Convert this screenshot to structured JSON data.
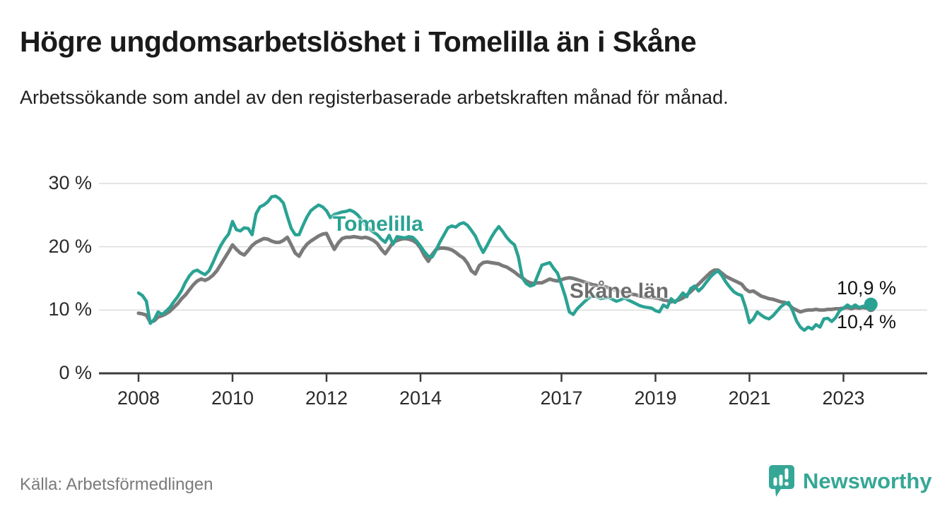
{
  "header": {
    "title": "Högre ungdomsarbetslöshet i Tomelilla än i Skåne",
    "subtitle": "Arbetssökande som andel av den registerbaserade arbetskraften månad för månad."
  },
  "chart_data": {
    "type": "line",
    "title": "Högre ungdomsarbetslöshet i Tomelilla än i Skåne",
    "subtitle": "Arbetssökande som andel av den registerbaserade arbetskraften månad för månad.",
    "unit": "%",
    "frequency": "monthly",
    "x_start": "2008-01",
    "x_end": "2023-08",
    "grid": "horizontal",
    "legend_position": "inline-labels",
    "y_axis": {
      "range": [
        0,
        30
      ],
      "ticks": [
        "30 %",
        "20 %",
        "10 %",
        "0 %"
      ]
    },
    "x_axis": {
      "ticks": [
        "2008",
        "2010",
        "2012",
        "2014",
        "2017",
        "2019",
        "2021",
        "2023"
      ]
    },
    "series": [
      {
        "name": "Skåne län",
        "color": "#7a7a7a",
        "end_label": "10,4 %",
        "end_value": 10.4,
        "values": [
          9.5,
          9.4,
          9.2,
          8.1,
          8.3,
          8.9,
          9.1,
          9.4,
          9.8,
          10.4,
          11.0,
          11.8,
          12.4,
          13.2,
          14.0,
          14.6,
          14.9,
          14.7,
          15.0,
          15.5,
          16.2,
          17.2,
          18.2,
          19.2,
          20.3,
          19.6,
          19.0,
          18.7,
          19.4,
          20.2,
          20.7,
          21.0,
          21.3,
          21.2,
          20.9,
          20.7,
          20.7,
          21.0,
          21.5,
          20.3,
          19.0,
          18.5,
          19.6,
          20.4,
          20.9,
          21.3,
          21.7,
          22.0,
          22.1,
          20.8,
          19.6,
          20.6,
          21.3,
          21.5,
          21.5,
          21.6,
          21.5,
          21.4,
          21.5,
          21.3,
          21.0,
          20.5,
          19.6,
          18.9,
          19.8,
          20.7,
          21.0,
          21.2,
          21.3,
          21.2,
          21.0,
          20.6,
          19.8,
          18.6,
          17.7,
          18.8,
          19.6,
          19.8,
          19.8,
          19.7,
          19.5,
          19.1,
          18.6,
          18.2,
          17.4,
          16.2,
          15.7,
          17.0,
          17.5,
          17.6,
          17.5,
          17.4,
          17.3,
          17.0,
          16.8,
          16.4,
          16.0,
          15.5,
          15.1,
          14.6,
          14.3,
          14.2,
          14.3,
          14.3,
          14.6,
          14.9,
          14.7,
          14.6,
          14.8,
          15.0,
          15.1,
          15.0,
          14.8,
          14.6,
          14.4,
          14.2,
          14.0,
          13.9,
          13.8,
          13.7,
          13.5,
          13.3,
          13.1,
          12.9,
          12.8,
          12.6,
          12.5,
          12.4,
          12.2,
          12.1,
          12.0,
          12.0,
          11.9,
          11.8,
          11.6,
          11.5,
          11.3,
          11.4,
          11.6,
          11.9,
          12.4,
          12.9,
          13.5,
          14.1,
          14.7,
          15.3,
          15.9,
          16.3,
          16.3,
          15.8,
          15.3,
          15.0,
          14.7,
          14.4,
          14.1,
          13.3,
          12.9,
          13.0,
          12.6,
          12.2,
          12.0,
          11.8,
          11.7,
          11.5,
          11.3,
          11.2,
          10.9,
          10.3,
          10.0,
          9.7,
          9.9,
          10.0,
          10.0,
          10.1,
          10.0,
          10.0,
          10.1,
          10.1,
          10.2,
          10.2,
          10.3,
          10.4,
          10.2,
          10.4,
          10.3,
          10.4,
          10.3,
          10.4
        ]
      },
      {
        "name": "Tomelilla",
        "color": "#2aa293",
        "end_label": "10,9 %",
        "end_value": 10.9,
        "values": [
          12.7,
          12.3,
          11.4,
          7.9,
          8.5,
          9.7,
          9.3,
          9.8,
          10.4,
          11.3,
          12.1,
          13.1,
          14.4,
          15.4,
          16.1,
          16.3,
          15.9,
          15.6,
          16.2,
          17.5,
          18.9,
          20.2,
          21.2,
          22.0,
          24.0,
          22.7,
          22.5,
          23.0,
          22.9,
          21.9,
          25.2,
          26.3,
          26.6,
          27.1,
          27.9,
          28.0,
          27.6,
          26.9,
          24.8,
          22.9,
          21.9,
          21.9,
          23.4,
          24.7,
          25.7,
          26.2,
          26.6,
          26.3,
          25.7,
          24.6,
          25.1,
          25.3,
          25.5,
          25.6,
          25.8,
          25.5,
          25.0,
          24.2,
          23.4,
          22.8,
          22.3,
          21.9,
          21.2,
          20.7,
          21.8,
          20.4,
          21.6,
          21.5,
          21.4,
          21.6,
          21.5,
          20.9,
          20.1,
          19.2,
          18.5,
          18.4,
          19.5,
          20.8,
          21.9,
          23.0,
          23.3,
          23.1,
          23.6,
          23.8,
          23.4,
          22.6,
          21.7,
          20.3,
          19.1,
          20.2,
          21.4,
          22.4,
          23.2,
          22.4,
          21.5,
          20.8,
          20.3,
          18.4,
          15.1,
          14.2,
          13.8,
          14.0,
          15.6,
          17.1,
          17.3,
          17.5,
          16.6,
          15.8,
          14.0,
          12.1,
          9.7,
          9.3,
          10.2,
          10.8,
          11.4,
          11.9,
          12.3,
          12.1,
          11.8,
          11.9,
          12.0,
          11.7,
          11.4,
          11.6,
          11.9,
          11.6,
          11.3,
          11.0,
          10.7,
          10.5,
          10.4,
          10.3,
          9.9,
          9.7,
          10.8,
          10.4,
          11.8,
          11.2,
          11.9,
          12.7,
          12.1,
          13.4,
          13.8,
          13.0,
          13.6,
          14.4,
          15.2,
          15.8,
          16.2,
          15.4,
          14.4,
          13.6,
          12.9,
          12.5,
          12.3,
          10.4,
          8.0,
          8.6,
          9.7,
          9.2,
          8.8,
          8.6,
          9.1,
          9.8,
          10.5,
          11.0,
          11.2,
          9.9,
          8.3,
          7.3,
          6.8,
          7.3,
          7.0,
          7.7,
          7.3,
          8.6,
          8.7,
          8.2,
          8.8,
          9.9,
          10.3,
          10.8,
          10.4,
          10.8,
          10.4,
          10.6,
          10.7,
          10.9
        ]
      }
    ]
  },
  "footer": {
    "source": "Källa: Arbetsförmedlingen",
    "brand": "Newsworthy"
  },
  "colors": {
    "tomelilla": "#2aa293",
    "skane": "#7a7a7a",
    "brand_teal": "#36a796",
    "axis": "#3c3c3c",
    "gridline": "#dcdcdc"
  }
}
